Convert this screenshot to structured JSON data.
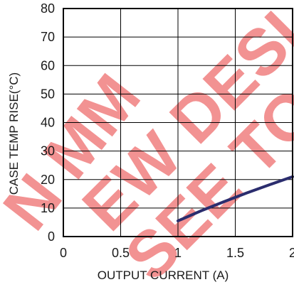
{
  "watermark": {
    "text": "NOT RECOMMENDED FOR NEW DESIGNS",
    "color": "#e83a3a"
  },
  "chart_data": {
    "type": "line",
    "title": "",
    "xlabel": "OUTPUT CURRENT (A)",
    "ylabel": "CASE TEMP RISE(°C)",
    "xlim": [
      0,
      2
    ],
    "ylim": [
      0,
      80
    ],
    "xticks": [
      0,
      0.5,
      1,
      1.5,
      2
    ],
    "yticks": [
      0,
      10,
      20,
      30,
      40,
      50,
      60,
      70,
      80
    ],
    "x_tick_labels": [
      "0",
      "0.5",
      "1",
      "1.5",
      "2"
    ],
    "y_tick_labels": [
      "0",
      "10",
      "20",
      "30",
      "40",
      "50",
      "60",
      "70",
      "80"
    ],
    "grid": true,
    "series": [
      {
        "color": "#2b2d6e",
        "points": [
          [
            1.0,
            5.5
          ],
          [
            1.2,
            9.0
          ],
          [
            1.4,
            12.2
          ],
          [
            1.6,
            15.3
          ],
          [
            1.8,
            18.2
          ],
          [
            2.0,
            21.0
          ]
        ]
      }
    ]
  }
}
